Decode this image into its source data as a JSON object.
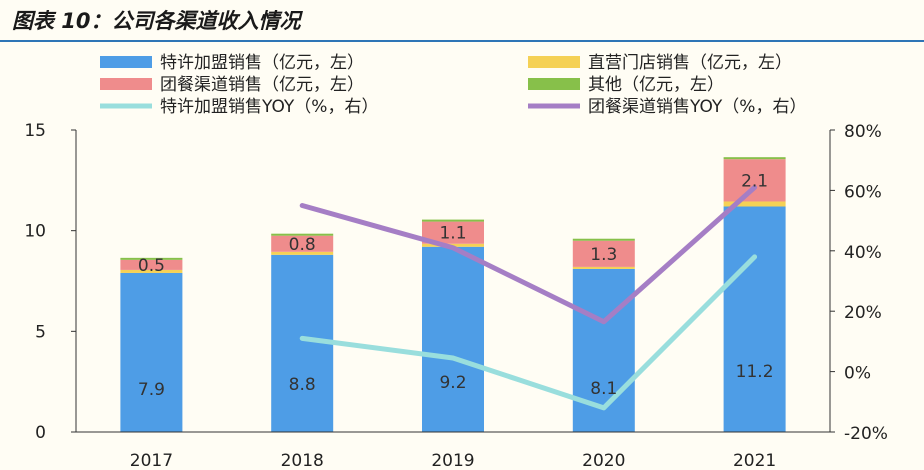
{
  "title": "图表 10：公司各渠道收入情况",
  "chart_data": {
    "type": "bar",
    "stacked": true,
    "categories": [
      "2017",
      "2018",
      "2019",
      "2020",
      "2021"
    ],
    "series": [
      {
        "name": "特许加盟销售（亿元，左）",
        "axis": "left",
        "color": "#4e9de6",
        "values": [
          7.9,
          8.8,
          9.2,
          8.1,
          11.2
        ],
        "labels": [
          "7.9",
          "8.8",
          "9.2",
          "8.1",
          "11.2"
        ]
      },
      {
        "name": "直营门店销售（亿元，左）",
        "axis": "left",
        "color": "#f5d155",
        "values": [
          0.15,
          0.15,
          0.15,
          0.1,
          0.25
        ]
      },
      {
        "name": "团餐渠道销售（亿元，左）",
        "axis": "left",
        "color": "#ef8c8c",
        "values": [
          0.5,
          0.8,
          1.1,
          1.3,
          2.1
        ],
        "labels": [
          "0.5",
          "0.8",
          "1.1",
          "1.3",
          "2.1"
        ]
      },
      {
        "name": "其他（亿元，左）",
        "axis": "left",
        "color": "#87c04a",
        "values": [
          0.1,
          0.1,
          0.1,
          0.1,
          0.1
        ]
      }
    ],
    "lines": [
      {
        "name": "特许加盟销售YOY（%，右）",
        "axis": "right",
        "color": "#99dedd",
        "values": [
          null,
          11,
          4.5,
          -12,
          38
        ]
      },
      {
        "name": "团餐渠道销售YOY（%，右）",
        "axis": "right",
        "color": "#a57ec5",
        "values": [
          null,
          55,
          41,
          16.5,
          61
        ]
      }
    ],
    "ylim_left": [
      0,
      15
    ],
    "yticks_left": [
      "0",
      "5",
      "10",
      "15"
    ],
    "ylim_right": [
      -20,
      80
    ],
    "yticks_right": [
      "-20%",
      "0%",
      "20%",
      "40%",
      "60%",
      "80%"
    ],
    "legend_position": "top"
  }
}
